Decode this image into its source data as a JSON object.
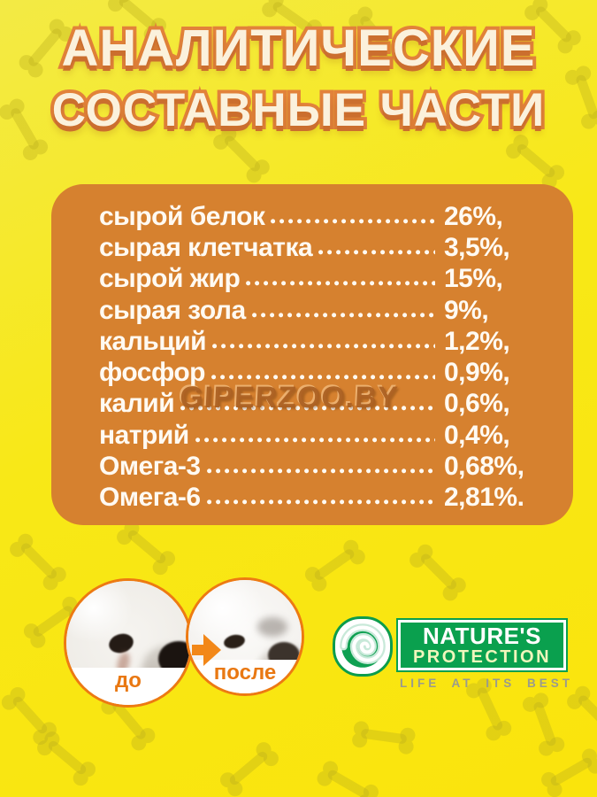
{
  "title": {
    "line1": "АНАЛИТИЧЕСКИЕ",
    "line2": "СОСТАВНЫЕ ЧАСТИ"
  },
  "analysis": {
    "rows": [
      {
        "label": "сырой белок",
        "value": "26%,"
      },
      {
        "label": "сырая клетчатка",
        "value": "3,5%,"
      },
      {
        "label": "сырой жир",
        "value": "15%,"
      },
      {
        "label": "сырая зола",
        "value": "9%,"
      },
      {
        "label": "кальций",
        "value": "1,2%,"
      },
      {
        "label": "фосфор",
        "value": "0,9%,"
      },
      {
        "label": "калий",
        "value": "0,6%,"
      },
      {
        "label": "натрий",
        "value": "0,4%,"
      },
      {
        "label": "Омега-3",
        "value": "0,68%,"
      },
      {
        "label": "Омега-6",
        "value": "2,81%."
      }
    ]
  },
  "watermark": "GIPERZOO.BY",
  "comparison": {
    "before_label": "до",
    "after_label": "после"
  },
  "logo": {
    "name_line1": "NATURE'S",
    "name_line2": "PROTECTION",
    "tagline": "LIFE AT ITS BEST"
  },
  "colors": {
    "background_yellow": "#F8E817",
    "panel_orange": "#D6812F",
    "title_cream": "#FBF1DC",
    "title_outline_orange": "#E2823A",
    "accent_orange": "#ED7A12",
    "logo_green": "#0AA04E",
    "tagline_gray": "#9A9B8D"
  }
}
